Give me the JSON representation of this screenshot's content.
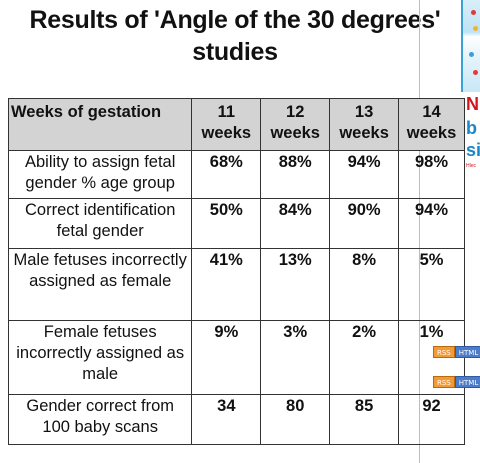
{
  "title": {
    "line1": "Results of 'Angle of the 30 degrees'",
    "line2": "studies"
  },
  "table": {
    "header_label": "Weeks of gestation",
    "weeks": [
      {
        "num": "11",
        "unit": "weeks"
      },
      {
        "num": "12",
        "unit": "weeks"
      },
      {
        "num": "13",
        "unit": "weeks"
      },
      {
        "num": "14",
        "unit": "weeks"
      }
    ],
    "rows": [
      {
        "label": "Ability to assign fetal gender % age group",
        "values": [
          "68%",
          "88%",
          "94%",
          "98%"
        ]
      },
      {
        "label": "Correct identification fetal gender",
        "values": [
          "50%",
          "84%",
          "90%",
          "94%"
        ]
      },
      {
        "label": "Male fetuses incorrectly assigned as female",
        "values": [
          "41%",
          "13%",
          "8%",
          "5%"
        ]
      },
      {
        "label": "Female fetuses incorrectly assigned as male",
        "values": [
          "9%",
          "3%",
          "2%",
          "1%"
        ]
      },
      {
        "label": "Gender correct from 100 baby scans",
        "values": [
          "34",
          "80",
          "85",
          "92"
        ]
      }
    ]
  },
  "ad": {
    "text1": "N",
    "text2": "b",
    "text3": "si",
    "text4": "Hlec",
    "colors": {
      "red": "#d4141d",
      "blue": "#1a86c8"
    }
  },
  "badges": [
    {
      "left": "RSS",
      "right": "HTML"
    },
    {
      "left": "RSS",
      "right": "HTML"
    }
  ]
}
